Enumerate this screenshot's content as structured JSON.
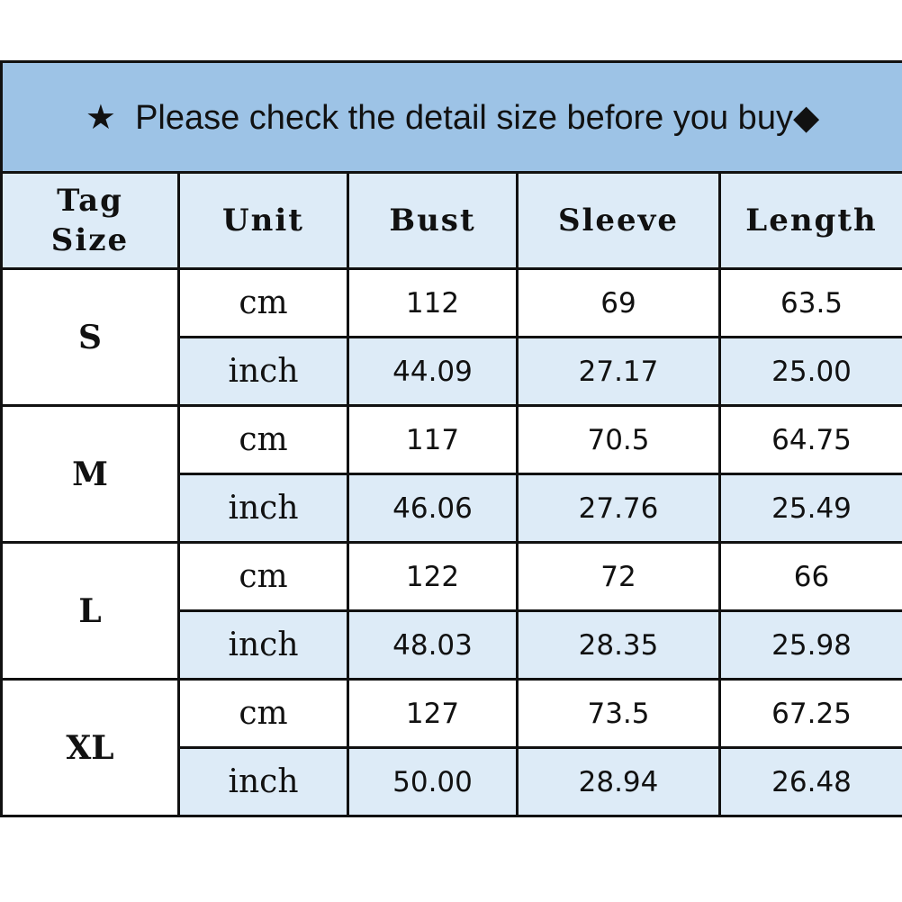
{
  "title": {
    "star_icon": "★",
    "text": "Please check the detail size before you buy",
    "diamond_icon": "◆"
  },
  "headers": {
    "tag": "Tag",
    "size": "Size",
    "unit": "Unit",
    "bust": "Bust",
    "sleeve": "Sleeve",
    "length": "Length"
  },
  "colors": {
    "title_bg": "#9dc3e6",
    "header_bg": "#ddebf7"
  },
  "rows": [
    {
      "size": "S",
      "cm": {
        "unit": "cm",
        "bust": "112",
        "sleeve": "69",
        "length": "63.5"
      },
      "inch": {
        "unit": "inch",
        "bust": "44.09",
        "sleeve": "27.17",
        "length": "25.00"
      }
    },
    {
      "size": "M",
      "cm": {
        "unit": "cm",
        "bust": "117",
        "sleeve": "70.5",
        "length": "64.75"
      },
      "inch": {
        "unit": "inch",
        "bust": "46.06",
        "sleeve": "27.76",
        "length": "25.49"
      }
    },
    {
      "size": "L",
      "cm": {
        "unit": "cm",
        "bust": "122",
        "sleeve": "72",
        "length": "66"
      },
      "inch": {
        "unit": "inch",
        "bust": "48.03",
        "sleeve": "28.35",
        "length": "25.98"
      }
    },
    {
      "size": "XL",
      "cm": {
        "unit": "cm",
        "bust": "127",
        "sleeve": "73.5",
        "length": "67.25"
      },
      "inch": {
        "unit": "inch",
        "bust": "50.00",
        "sleeve": "28.94",
        "length": "26.48"
      }
    }
  ]
}
